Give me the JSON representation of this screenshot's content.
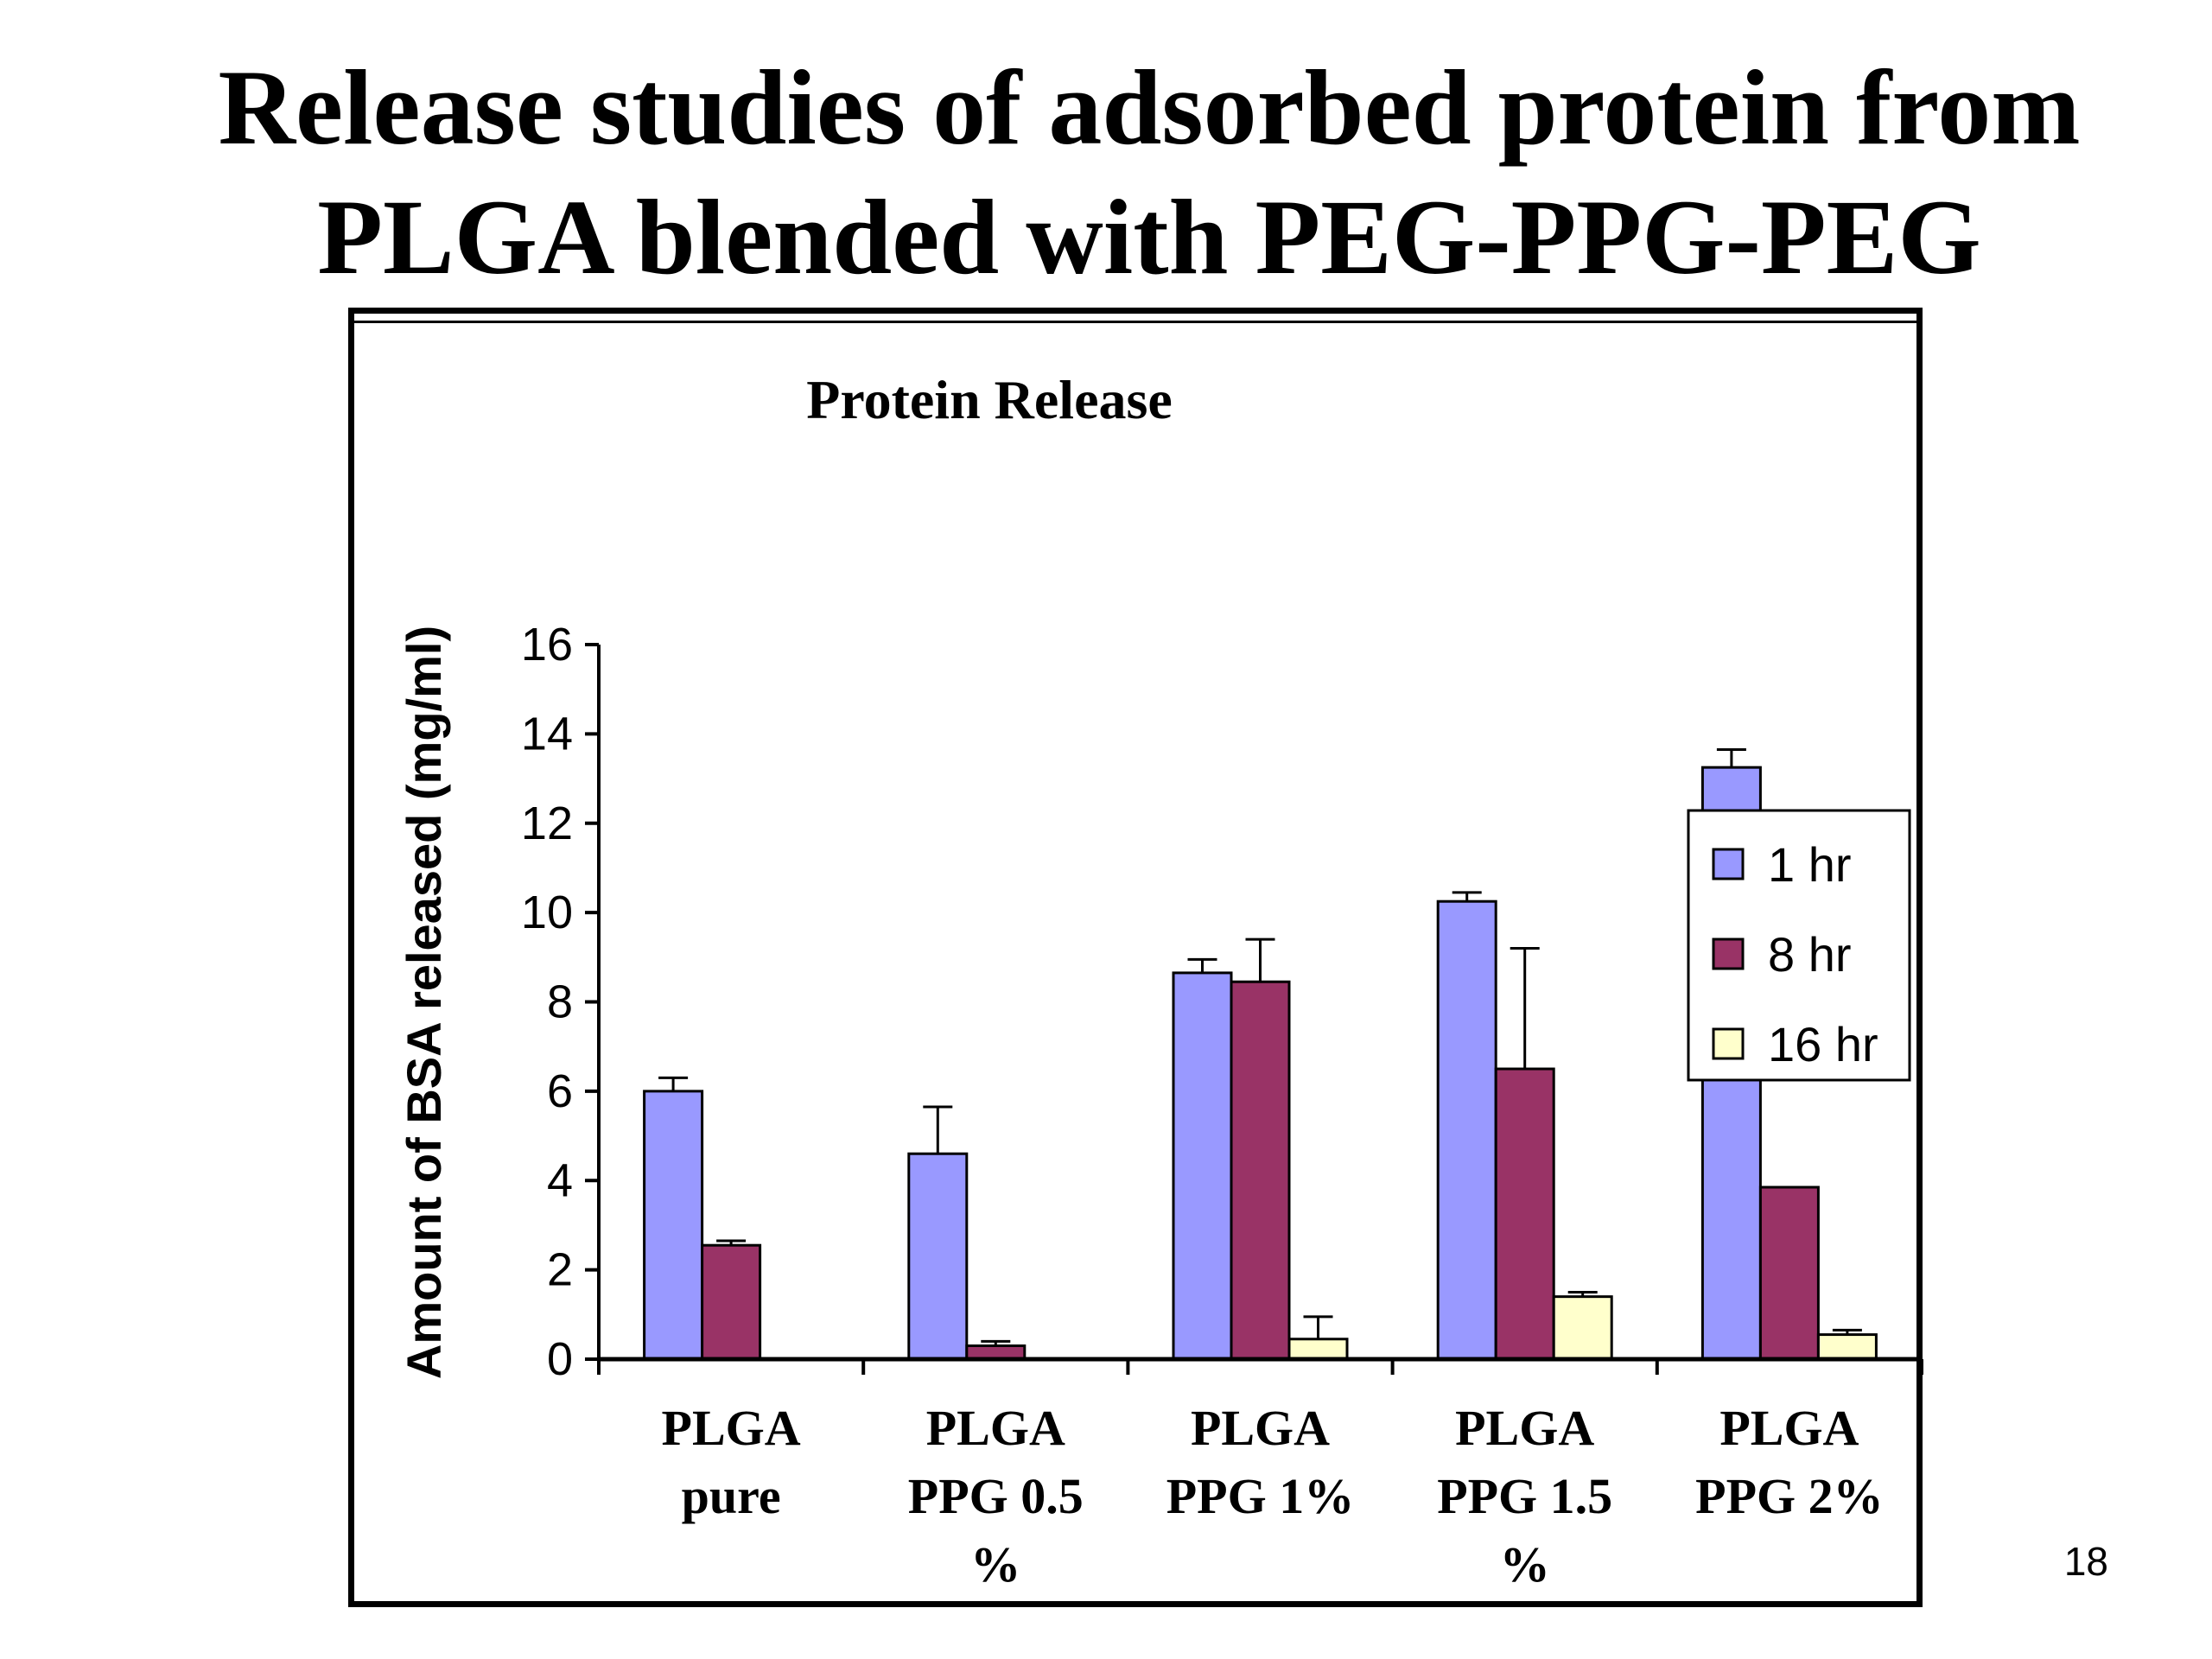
{
  "slide": {
    "title_lines": [
      "Release studies of adsorbed protein from",
      "PLGA blended with PEG-PPG-PEG"
    ],
    "page_number": "18"
  },
  "chart_data": {
    "type": "bar",
    "title": "Protein Release",
    "xlabel": "",
    "ylabel": "Amount of BSA released (mg/ml)",
    "ylim": [
      0,
      16
    ],
    "yticks": [
      "0",
      "2",
      "4",
      "6",
      "8",
      "10",
      "12",
      "14",
      "16"
    ],
    "categories": [
      [
        "PLGA",
        "pure"
      ],
      [
        "PLGA",
        "PPG 0.5",
        "%"
      ],
      [
        "PLGA",
        "PPG 1%"
      ],
      [
        "PLGA",
        "PPG 1.5",
        "%"
      ],
      [
        "PLGA",
        "PPG 2%"
      ]
    ],
    "series": [
      {
        "name": "1 hr",
        "color": "#9999ff",
        "values": [
          6.0,
          4.6,
          8.65,
          10.25,
          13.25
        ],
        "error": [
          0.3,
          1.05,
          0.3,
          0.2,
          0.4
        ]
      },
      {
        "name": "8 hr",
        "color": "#993366",
        "values": [
          2.55,
          0.3,
          8.45,
          6.5,
          3.85
        ],
        "error": [
          0.1,
          0.1,
          0.95,
          2.7,
          0.0
        ]
      },
      {
        "name": "16 hr",
        "color": "#ffffcc",
        "values": [
          0.0,
          0.0,
          0.45,
          1.4,
          0.55
        ],
        "error": [
          0.0,
          0.0,
          0.5,
          0.1,
          0.1
        ]
      }
    ],
    "legend_position": "right",
    "grid": false
  }
}
